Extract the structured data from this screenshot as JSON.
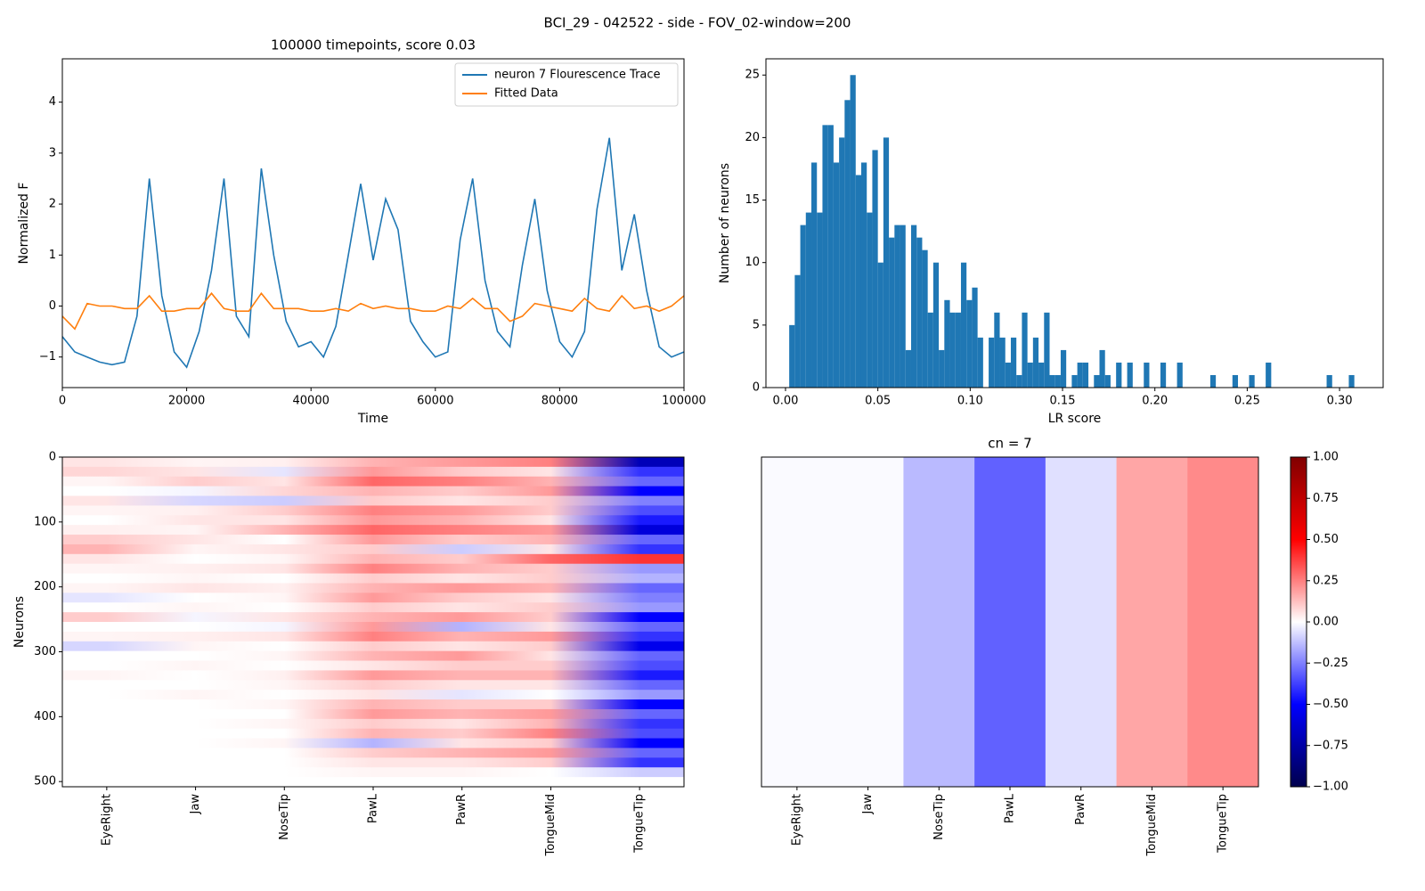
{
  "title": "BCI_29 - 042522 - side - FOV_02-window=200",
  "chart_data": [
    {
      "type": "line",
      "title": "100000 timepoints, score 0.03",
      "xlabel": "Time",
      "ylabel": "Normalized F",
      "x": [
        0,
        2000,
        4000,
        6000,
        8000,
        10000,
        12000,
        14000,
        16000,
        18000,
        20000,
        22000,
        24000,
        26000,
        28000,
        30000,
        32000,
        34000,
        36000,
        38000,
        40000,
        42000,
        44000,
        46000,
        48000,
        50000,
        52000,
        54000,
        56000,
        58000,
        60000,
        62000,
        64000,
        66000,
        68000,
        70000,
        72000,
        74000,
        76000,
        78000,
        80000,
        82000,
        84000,
        86000,
        88000,
        90000,
        92000,
        94000,
        96000,
        98000,
        100000
      ],
      "series": [
        {
          "name": "neuron 7 Flourescence Trace",
          "color": "#1f77b4",
          "values": [
            -0.6,
            -0.9,
            -1.0,
            -1.1,
            -1.15,
            -1.1,
            -0.2,
            2.5,
            0.2,
            -0.9,
            -1.2,
            -0.5,
            0.7,
            2.5,
            -0.2,
            -0.6,
            2.7,
            1.0,
            -0.3,
            -0.8,
            -0.7,
            -1.0,
            -0.4,
            1.0,
            2.4,
            0.9,
            2.1,
            1.5,
            -0.3,
            -0.7,
            -1.0,
            -0.9,
            1.3,
            2.5,
            0.5,
            -0.5,
            -0.8,
            0.8,
            2.1,
            0.3,
            -0.7,
            -1.0,
            -0.5,
            1.9,
            3.3,
            0.7,
            1.8,
            0.3,
            -0.8,
            -1.0,
            -0.9
          ]
        },
        {
          "name": "Fitted Data",
          "color": "#ff7f0e",
          "values": [
            -0.2,
            -0.45,
            0.05,
            0.0,
            0.0,
            -0.05,
            -0.05,
            0.2,
            -0.1,
            -0.1,
            -0.05,
            -0.05,
            0.25,
            -0.05,
            -0.1,
            -0.1,
            0.25,
            -0.05,
            -0.05,
            -0.05,
            -0.1,
            -0.1,
            -0.05,
            -0.1,
            0.05,
            -0.05,
            0.0,
            -0.05,
            -0.05,
            -0.1,
            -0.1,
            0.0,
            -0.05,
            0.15,
            -0.05,
            -0.05,
            -0.3,
            -0.2,
            0.05,
            0.0,
            -0.05,
            -0.1,
            0.15,
            -0.05,
            -0.1,
            0.2,
            -0.05,
            0.0,
            -0.1,
            0.0,
            0.2
          ]
        }
      ],
      "xlim": [
        0,
        100000
      ],
      "xticks": [
        0,
        20000,
        40000,
        60000,
        80000,
        100000
      ],
      "ylim": [
        -1.6,
        4.85
      ],
      "yticks": [
        {
          "value": -1,
          "label": "−1"
        },
        0,
        1,
        2,
        3,
        4
      ],
      "legend": "upper right"
    },
    {
      "type": "histogram",
      "xlabel": "LR score",
      "ylabel": "Number of neurons",
      "color": "#1f77b4",
      "bins": [
        0.002,
        0.005,
        0.008,
        0.011,
        0.014,
        0.017,
        0.02,
        0.023,
        0.026,
        0.029,
        0.032,
        0.035,
        0.038,
        0.041,
        0.044,
        0.047,
        0.05,
        0.053,
        0.056,
        0.059,
        0.062,
        0.065,
        0.068,
        0.071,
        0.074,
        0.077,
        0.08,
        0.083,
        0.086,
        0.089,
        0.092,
        0.095,
        0.098,
        0.101,
        0.104,
        0.107,
        0.11,
        0.113,
        0.116,
        0.119,
        0.122,
        0.125,
        0.128,
        0.131,
        0.134,
        0.137,
        0.14,
        0.143,
        0.146,
        0.149,
        0.152,
        0.155,
        0.158,
        0.161,
        0.164,
        0.167,
        0.17,
        0.173,
        0.176,
        0.179,
        0.182,
        0.185,
        0.188,
        0.191,
        0.194,
        0.197,
        0.2,
        0.203,
        0.206,
        0.209,
        0.212,
        0.215,
        0.218,
        0.221,
        0.224,
        0.227,
        0.23,
        0.233,
        0.236,
        0.239,
        0.242,
        0.245,
        0.248,
        0.251,
        0.254,
        0.257,
        0.26,
        0.263,
        0.266,
        0.269,
        0.272,
        0.275,
        0.278,
        0.281,
        0.284,
        0.287,
        0.29,
        0.293,
        0.296,
        0.299,
        0.302,
        0.305,
        0.308
      ],
      "values": [
        5,
        9,
        13,
        14,
        18,
        14,
        21,
        21,
        18,
        20,
        23,
        25,
        17,
        18,
        14,
        19,
        10,
        20,
        12,
        13,
        13,
        3,
        13,
        12,
        11,
        6,
        10,
        3,
        7,
        6,
        6,
        10,
        7,
        8,
        4,
        0,
        4,
        6,
        4,
        2,
        4,
        1,
        6,
        2,
        4,
        2,
        6,
        1,
        1,
        3,
        0,
        1,
        2,
        2,
        0,
        1,
        3,
        1,
        0,
        2,
        0,
        2,
        0,
        0,
        2,
        0,
        0,
        2,
        0,
        0,
        2,
        0,
        0,
        0,
        0,
        0,
        1,
        0,
        0,
        0,
        1,
        0,
        0,
        1,
        0,
        0,
        2,
        0,
        0,
        0,
        0,
        0,
        0,
        0,
        0,
        0,
        0,
        1,
        0,
        0,
        0,
        1
      ],
      "xlim": [
        -0.0106,
        0.3236
      ],
      "xticks": [
        {
          "value": 0,
          "label": "0.00"
        },
        {
          "value": 0.05,
          "label": "0.05"
        },
        {
          "value": 0.1,
          "label": "0.10"
        },
        {
          "value": 0.15,
          "label": "0.15"
        },
        {
          "value": 0.2,
          "label": "0.20"
        },
        {
          "value": 0.25,
          "label": "0.25"
        },
        {
          "value": 0.3,
          "label": "0.30"
        }
      ],
      "ylim": [
        0,
        26.3
      ],
      "yticks": [
        0,
        5,
        10,
        15,
        20,
        25
      ]
    },
    {
      "type": "heatmap",
      "ylabel": "Neurons",
      "colormap": "seismic",
      "clim": [
        -1,
        1
      ],
      "categories": [
        "EyeRight",
        "Jaw",
        "NoseTip",
        "PawL",
        "PawR",
        "TongueMid",
        "TongueTip"
      ],
      "ylim": [
        508,
        0
      ],
      "yticks": [
        0,
        100,
        200,
        300,
        400,
        500
      ],
      "values": [
        [
          0.05,
          0.02,
          0.03,
          0.15,
          0.2,
          0.25,
          -0.7
        ],
        [
          0.08,
          0.05,
          -0.05,
          0.2,
          0.1,
          0.05,
          -0.4
        ],
        [
          0.02,
          0.1,
          0.05,
          0.3,
          0.25,
          0.15,
          -0.3
        ],
        [
          0.0,
          -0.02,
          0.08,
          0.15,
          0.1,
          0.2,
          -0.5
        ],
        [
          0.05,
          -0.08,
          -0.1,
          0.1,
          0.05,
          0.1,
          -0.25
        ],
        [
          0.02,
          0.03,
          0.1,
          0.25,
          0.2,
          0.1,
          -0.35
        ],
        [
          0.0,
          0.05,
          0.05,
          0.2,
          0.15,
          0.05,
          -0.45
        ],
        [
          0.03,
          0.02,
          0.15,
          0.3,
          0.25,
          0.2,
          -0.6
        ],
        [
          0.1,
          0.05,
          0.0,
          0.2,
          0.1,
          0.15,
          -0.3
        ],
        [
          0.15,
          0.02,
          0.05,
          0.1,
          -0.1,
          0.05,
          -0.4
        ],
        [
          0.05,
          0.0,
          0.02,
          0.15,
          0.1,
          0.3,
          0.4
        ],
        [
          0.02,
          0.03,
          0.05,
          0.25,
          0.15,
          0.1,
          -0.2
        ],
        [
          0.0,
          0.02,
          0.0,
          0.1,
          0.05,
          0.1,
          -0.15
        ],
        [
          0.02,
          0.05,
          0.03,
          0.15,
          0.2,
          0.15,
          -0.3
        ],
        [
          -0.05,
          0.0,
          0.02,
          0.2,
          0.1,
          0.05,
          -0.25
        ],
        [
          0.0,
          0.02,
          0.0,
          0.1,
          0.05,
          0.1,
          -0.2
        ],
        [
          0.1,
          -0.02,
          0.05,
          0.15,
          0.2,
          0.1,
          -0.5
        ],
        [
          0.0,
          0.0,
          -0.02,
          0.2,
          -0.15,
          0.05,
          -0.3
        ],
        [
          0.02,
          0.03,
          0.05,
          0.25,
          0.15,
          0.2,
          -0.4
        ],
        [
          -0.08,
          0.02,
          0.0,
          0.1,
          0.05,
          0.1,
          -0.55
        ],
        [
          0.0,
          0.0,
          0.02,
          0.15,
          0.2,
          0.05,
          -0.3
        ],
        [
          0.0,
          0.02,
          0.0,
          0.05,
          0.1,
          0.1,
          -0.35
        ],
        [
          0.02,
          0.0,
          0.03,
          0.2,
          0.15,
          0.15,
          -0.45
        ],
        [
          0.0,
          0.0,
          0.02,
          0.1,
          0.05,
          0.05,
          -0.3
        ],
        [
          0.0,
          0.02,
          0.0,
          0.05,
          -0.05,
          0.0,
          -0.2
        ],
        [
          0.0,
          0.0,
          0.02,
          0.15,
          0.1,
          0.1,
          -0.5
        ],
        [
          0.0,
          0.0,
          0.0,
          0.2,
          0.15,
          0.2,
          -0.3
        ],
        [
          0.0,
          0.0,
          0.02,
          0.1,
          0.05,
          0.15,
          -0.4
        ],
        [
          0.0,
          0.0,
          0.0,
          0.15,
          0.1,
          0.25,
          -0.35
        ],
        [
          0.0,
          0.0,
          0.02,
          -0.15,
          0.05,
          0.1,
          -0.5
        ],
        [
          0.0,
          0.0,
          0.0,
          0.1,
          0.15,
          0.2,
          -0.3
        ],
        [
          0.0,
          0.0,
          0.0,
          0.05,
          0.05,
          0.1,
          -0.4
        ],
        [
          0.0,
          0.0,
          0.0,
          0.02,
          0.02,
          0.0,
          -0.1
        ],
        [
          0.0,
          0.0,
          0.0,
          0.0,
          0.0,
          0.0,
          0.0
        ]
      ]
    },
    {
      "type": "heatmap-row",
      "title": "cn = 7",
      "colormap": "seismic",
      "clim": [
        -1,
        1
      ],
      "categories": [
        "EyeRight",
        "Jaw",
        "NoseTip",
        "PawL",
        "PawR",
        "TongueMid",
        "TongueTip"
      ],
      "values": [
        [
          -0.01,
          -0.01,
          -0.135,
          -0.31,
          -0.06,
          0.175,
          0.23
        ]
      ],
      "colorbar": {
        "lim": [
          -1,
          1
        ],
        "ticks": [
          {
            "value": -1,
            "label": "−1.00"
          },
          {
            "value": -0.75,
            "label": "−0.75"
          },
          {
            "value": -0.5,
            "label": "−0.50"
          },
          {
            "value": -0.25,
            "label": "−0.25"
          },
          {
            "value": 0,
            "label": "0.00"
          },
          {
            "value": 0.25,
            "label": "0.25"
          },
          {
            "value": 0.5,
            "label": "0.50"
          },
          {
            "value": 0.75,
            "label": "0.75"
          },
          {
            "value": 1,
            "label": "1.00"
          }
        ]
      }
    }
  ]
}
